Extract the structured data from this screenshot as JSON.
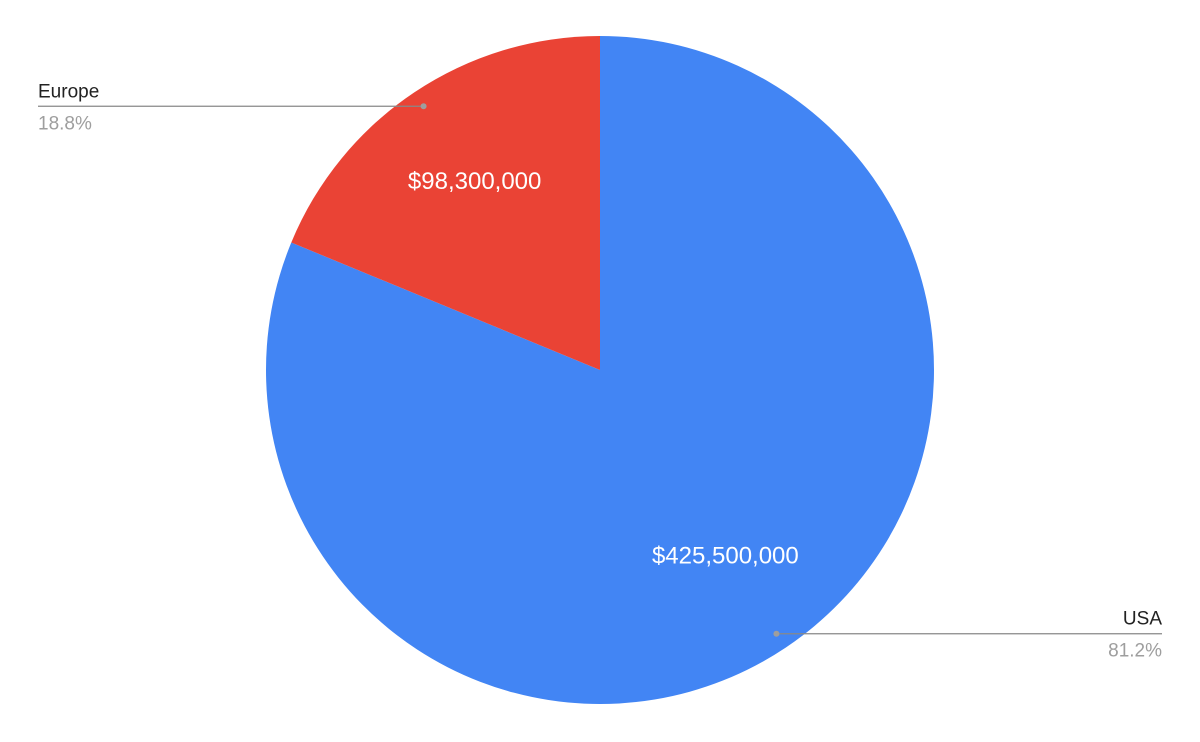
{
  "chart_data": {
    "type": "pie",
    "categories": [
      "USA",
      "Europe"
    ],
    "values": [
      425500000,
      98300000
    ],
    "value_labels": [
      "$425,500,000",
      "$98,300,000"
    ],
    "percent_labels": [
      "81.2%",
      "18.8%"
    ],
    "colors": [
      "#4285f4",
      "#ea4335"
    ]
  }
}
